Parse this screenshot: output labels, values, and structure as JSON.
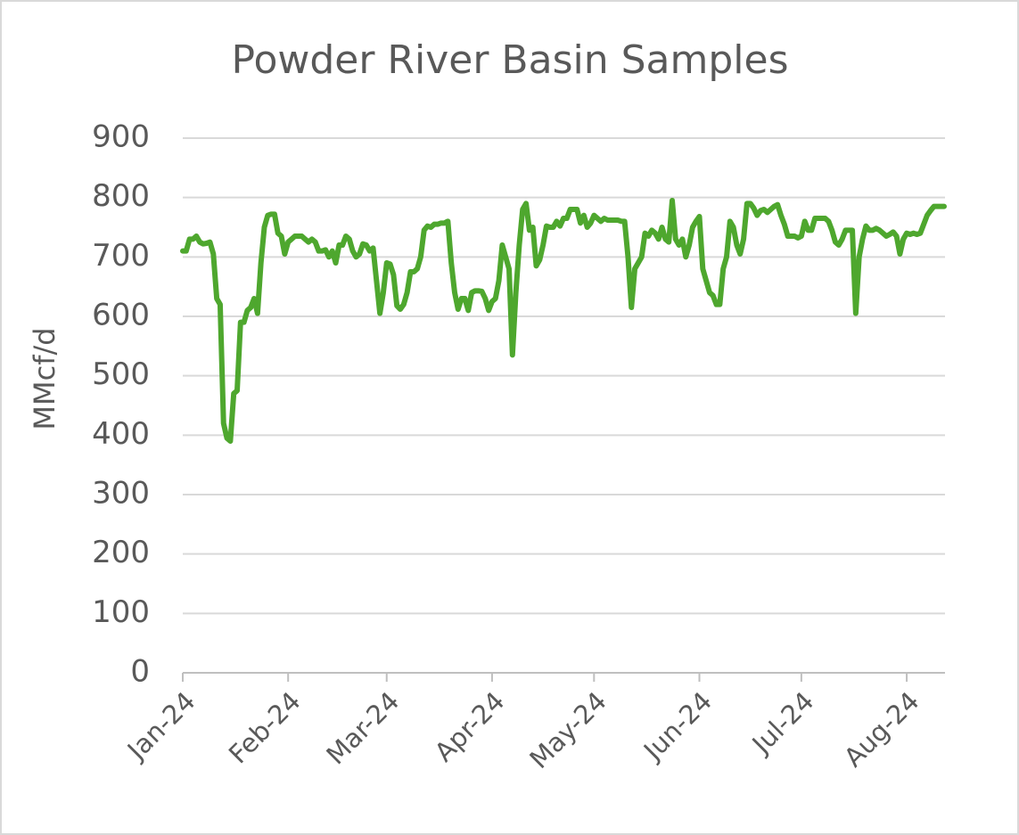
{
  "chart_data": {
    "type": "line",
    "title": "Powder River Basin Samples",
    "y_label": "MMcf/d",
    "categories": [
      "Jan-24",
      null,
      null,
      null,
      null,
      null,
      null,
      null,
      null,
      null,
      null,
      null,
      null,
      null,
      null,
      null,
      null,
      null,
      null,
      null,
      null,
      null,
      null,
      null,
      null,
      null,
      null,
      null,
      null,
      null,
      null,
      "Feb-24",
      null,
      null,
      null,
      null,
      null,
      null,
      null,
      null,
      null,
      null,
      null,
      null,
      null,
      null,
      null,
      null,
      null,
      null,
      null,
      null,
      null,
      null,
      null,
      null,
      null,
      null,
      null,
      null,
      "Mar-24",
      null,
      null,
      null,
      null,
      null,
      null,
      null,
      null,
      null,
      null,
      null,
      null,
      null,
      null,
      null,
      null,
      null,
      null,
      null,
      null,
      null,
      null,
      null,
      null,
      null,
      null,
      null,
      null,
      null,
      null,
      "Apr-24",
      null,
      null,
      null,
      null,
      null,
      null,
      null,
      null,
      null,
      null,
      null,
      null,
      null,
      null,
      null,
      null,
      null,
      null,
      null,
      null,
      null,
      null,
      null,
      null,
      null,
      null,
      null,
      null,
      null,
      "May-24",
      null,
      null,
      null,
      null,
      null,
      null,
      null,
      null,
      null,
      null,
      null,
      null,
      null,
      null,
      null,
      null,
      null,
      null,
      null,
      null,
      null,
      null,
      null,
      null,
      null,
      null,
      null,
      null,
      null,
      null,
      "Jun-24",
      null,
      null,
      null,
      null,
      null,
      null,
      null,
      null,
      null,
      null,
      null,
      null,
      null,
      null,
      null,
      null,
      null,
      null,
      null,
      null,
      null,
      null,
      null,
      null,
      null,
      null,
      null,
      null,
      null,
      "Jul-24",
      null,
      null,
      null,
      null,
      null,
      null,
      null,
      null,
      null,
      null,
      null,
      null,
      null,
      null,
      null,
      null,
      null,
      null,
      null,
      null,
      null,
      null,
      null,
      null,
      null,
      null,
      null,
      null,
      null,
      null,
      "Aug-24",
      null,
      null,
      null,
      null,
      null,
      null,
      null,
      null,
      null,
      null,
      null
    ],
    "values": [
      710,
      710,
      730,
      730,
      735,
      725,
      722,
      723,
      725,
      705,
      630,
      620,
      420,
      395,
      390,
      470,
      475,
      590,
      590,
      610,
      615,
      630,
      605,
      690,
      750,
      770,
      772,
      772,
      740,
      735,
      705,
      725,
      730,
      735,
      735,
      735,
      730,
      725,
      730,
      725,
      710,
      710,
      712,
      700,
      710,
      690,
      720,
      720,
      735,
      730,
      710,
      700,
      705,
      722,
      720,
      710,
      715,
      660,
      605,
      640,
      690,
      688,
      670,
      618,
      612,
      620,
      640,
      675,
      675,
      680,
      700,
      745,
      752,
      750,
      755,
      755,
      757,
      757,
      760,
      690,
      640,
      612,
      630,
      630,
      610,
      640,
      643,
      643,
      642,
      630,
      610,
      625,
      630,
      660,
      720,
      700,
      680,
      535,
      640,
      720,
      780,
      790,
      745,
      750,
      685,
      695,
      720,
      752,
      750,
      750,
      760,
      752,
      765,
      765,
      780,
      780,
      780,
      757,
      770,
      750,
      757,
      770,
      765,
      760,
      765,
      762,
      762,
      762,
      762,
      760,
      760,
      700,
      615,
      680,
      690,
      700,
      740,
      735,
      745,
      740,
      730,
      750,
      730,
      725,
      795,
      730,
      720,
      730,
      700,
      720,
      750,
      760,
      768,
      680,
      660,
      640,
      635,
      620,
      620,
      680,
      700,
      760,
      750,
      720,
      705,
      730,
      790,
      790,
      782,
      770,
      778,
      780,
      775,
      780,
      785,
      788,
      770,
      755,
      735,
      735,
      735,
      732,
      735,
      760,
      745,
      745,
      765,
      765,
      765,
      765,
      760,
      745,
      725,
      720,
      730,
      745,
      745,
      745,
      605,
      700,
      730,
      752,
      745,
      745,
      748,
      745,
      740,
      735,
      738,
      742,
      735,
      705,
      730,
      740,
      738,
      740,
      738,
      740,
      755,
      770,
      778,
      785,
      785,
      785,
      785
    ],
    "color": "#4ea72e",
    "ylim": [
      0,
      900
    ],
    "yticks": [
      0,
      100,
      200,
      300,
      400,
      500,
      600,
      700,
      800,
      900
    ],
    "grid": true
  }
}
